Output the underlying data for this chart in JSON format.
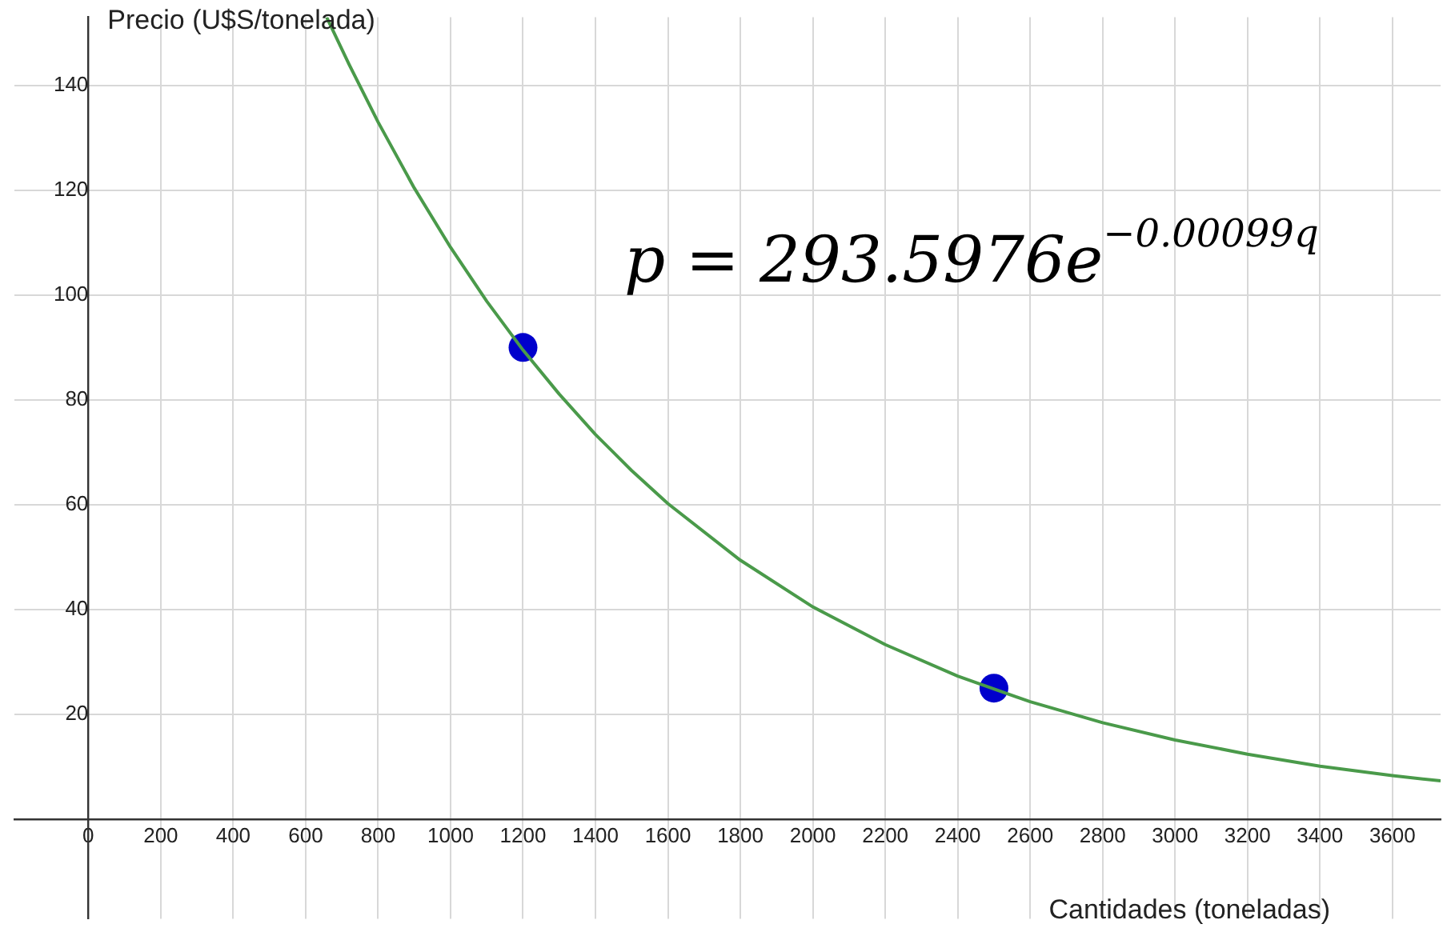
{
  "chart_data": {
    "type": "line",
    "xlabel": "Cantidades (toneladas)",
    "ylabel": "Precio (U$S/tonelada)",
    "annotations": [
      "p = 293.5976e$^{−0.00099q}$"
    ],
    "xlim": [
      -204,
      3733
    ],
    "ylim": [
      -19,
      153
    ],
    "xticks": [
      0,
      200,
      400,
      600,
      800,
      1000,
      1200,
      1400,
      1600,
      1800,
      2000,
      2200,
      2400,
      2600,
      2800,
      3000,
      3200,
      3400,
      3600
    ],
    "yticks": [
      20,
      40,
      60,
      80,
      100,
      120,
      140
    ],
    "grid": true,
    "legend": false,
    "series": [
      {
        "color": "#4a9a4a",
        "marker": "none",
        "x": [
          658,
          720,
          800,
          900,
          1000,
          1100,
          1200,
          1300,
          1400,
          1500,
          1600,
          1800,
          2000,
          2200,
          2400,
          2600,
          2800,
          3000,
          3200,
          3400,
          3600,
          3733
        ],
        "values": [
          153.0,
          144.0,
          133.0,
          120.4,
          109.1,
          98.8,
          89.5,
          81.1,
          73.4,
          66.5,
          60.2,
          49.4,
          40.5,
          33.3,
          27.3,
          22.4,
          18.4,
          15.1,
          12.4,
          10.1,
          8.3,
          7.3
        ]
      },
      {
        "type": "scatter",
        "color": "#0000cc",
        "marker": "circle",
        "x": [
          1200,
          2500
        ],
        "values": [
          90,
          25
        ]
      }
    ]
  }
}
